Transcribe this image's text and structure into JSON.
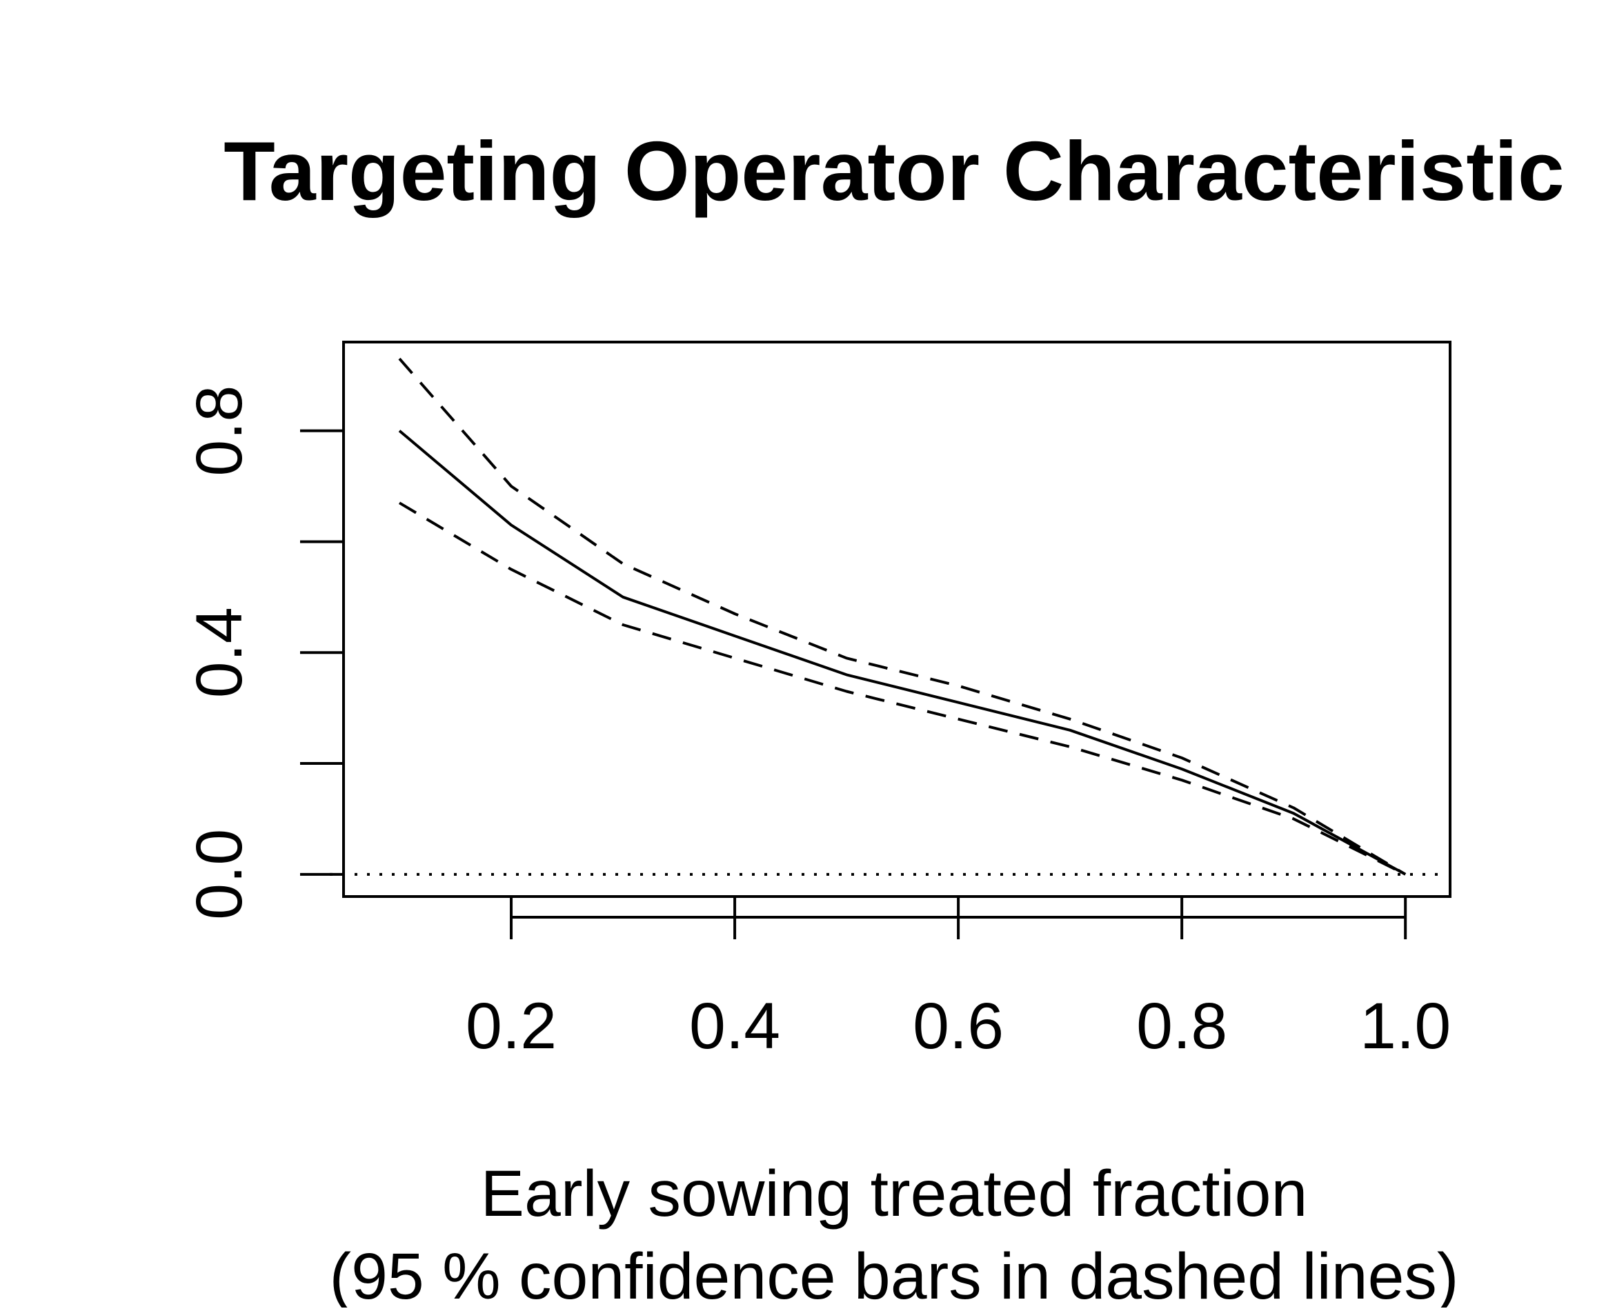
{
  "chart_data": {
    "type": "line",
    "title": "Targeting Operator Characteristic",
    "xlabel": "Early sowing treated fraction",
    "xlabel_line2": "(95 % confidence bars in dashed lines)",
    "ylabel": "",
    "xlim": [
      0.05,
      1.04
    ],
    "ylim": [
      -0.04,
      0.96
    ],
    "x_ticks": [
      0.2,
      0.4,
      0.6,
      0.8,
      1.0
    ],
    "x_tick_labels": [
      "0.2",
      "0.4",
      "0.6",
      "0.8",
      "1.0"
    ],
    "y_ticks": [
      0.0,
      0.2,
      0.4,
      0.6,
      0.8
    ],
    "y_tick_labels": [
      "0.0",
      "",
      "0.4",
      "",
      "0.8"
    ],
    "grid": false,
    "legend": "none",
    "reference_line": {
      "y": 0.0,
      "style": "dotted"
    },
    "x": [
      0.1,
      0.2,
      0.3,
      0.4,
      0.5,
      0.6,
      0.7,
      0.8,
      0.9,
      1.0
    ],
    "series": [
      {
        "style": "solid",
        "values": [
          0.8,
          0.63,
          0.5,
          0.43,
          0.36,
          0.31,
          0.26,
          0.19,
          0.11,
          0.0
        ]
      },
      {
        "style": "dashed",
        "values": [
          0.93,
          0.7,
          0.56,
          0.47,
          0.39,
          0.34,
          0.28,
          0.21,
          0.12,
          0.0
        ]
      },
      {
        "style": "dashed",
        "values": [
          0.67,
          0.55,
          0.45,
          0.39,
          0.33,
          0.28,
          0.23,
          0.17,
          0.1,
          0.0
        ]
      }
    ]
  }
}
